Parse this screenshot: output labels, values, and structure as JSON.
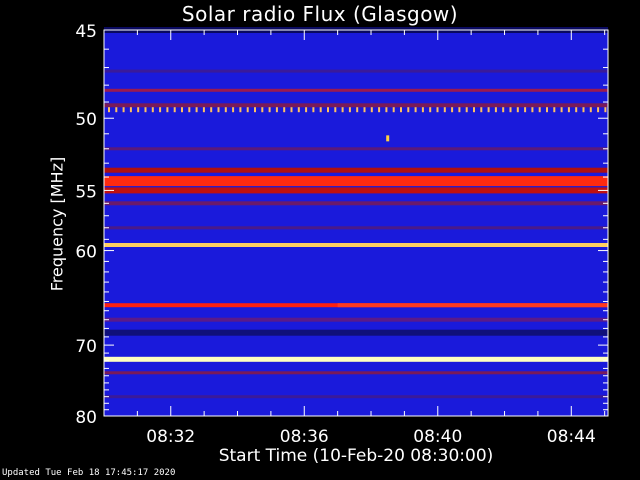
{
  "chart_data": {
    "type": "heatmap",
    "title": "Solar radio Flux (Glasgow)",
    "xlabel": "Start Time (10-Feb-20 08:30:00)",
    "ylabel": "Frequency [MHz]",
    "xlim_minutes": [
      0,
      15.1
    ],
    "ylim": [
      45,
      80
    ],
    "y_scale": "reciprocal",
    "x_ticks": [
      {
        "label": "08:32",
        "minutes": 2
      },
      {
        "label": "08:36",
        "minutes": 6
      },
      {
        "label": "08:40",
        "minutes": 10
      },
      {
        "label": "08:44",
        "minutes": 14
      }
    ],
    "y_ticks": [
      45,
      50,
      55,
      60,
      70,
      80
    ],
    "background_color": "#1a1adb",
    "bands": [
      {
        "freq_mhz": 45.0,
        "color": "#0a0a60"
      },
      {
        "freq_mhz": 47.2,
        "color": "#3a1a9a"
      },
      {
        "freq_mhz": 48.3,
        "color": "#9a1a50"
      },
      {
        "freq_mhz": 49.2,
        "color": "#7a1a5a"
      },
      {
        "freq_mhz": 49.5,
        "color": "#ffc060",
        "dashed": true
      },
      {
        "freq_mhz": 52.0,
        "color": "#5a1a7a"
      },
      {
        "freq_mhz": 53.5,
        "color": "#b01010"
      },
      {
        "freq_mhz": 54.3,
        "color": "#ff2a10"
      },
      {
        "freq_mhz": 55.0,
        "color": "#c01010"
      },
      {
        "freq_mhz": 56.0,
        "color": "#6a1a6a"
      },
      {
        "freq_mhz": 58.0,
        "color": "#4a1a8a"
      },
      {
        "freq_mhz": 59.5,
        "color": "#ffd060"
      },
      {
        "freq_mhz": 65.4,
        "color": "#ff2010"
      },
      {
        "freq_mhz": 67.0,
        "color": "#5a1a8a"
      },
      {
        "freq_mhz": 68.5,
        "color": "#10107a"
      },
      {
        "freq_mhz": 71.8,
        "color": "#ffffc0"
      },
      {
        "freq_mhz": 73.6,
        "color": "#7a1a5a"
      },
      {
        "freq_mhz": 77.0,
        "color": "#3a1a9a"
      }
    ],
    "spots": [
      {
        "minutes": 8.5,
        "freq_mhz": 51.3,
        "color": "#ffd040"
      }
    ]
  },
  "labels": {
    "title": "Solar radio Flux (Glasgow)",
    "xlabel": "Start Time (10-Feb-20 08:30:00)",
    "ylabel": "Frequency [MHz]",
    "footer": "Updated Tue Feb 18 17:45:17 2020"
  }
}
